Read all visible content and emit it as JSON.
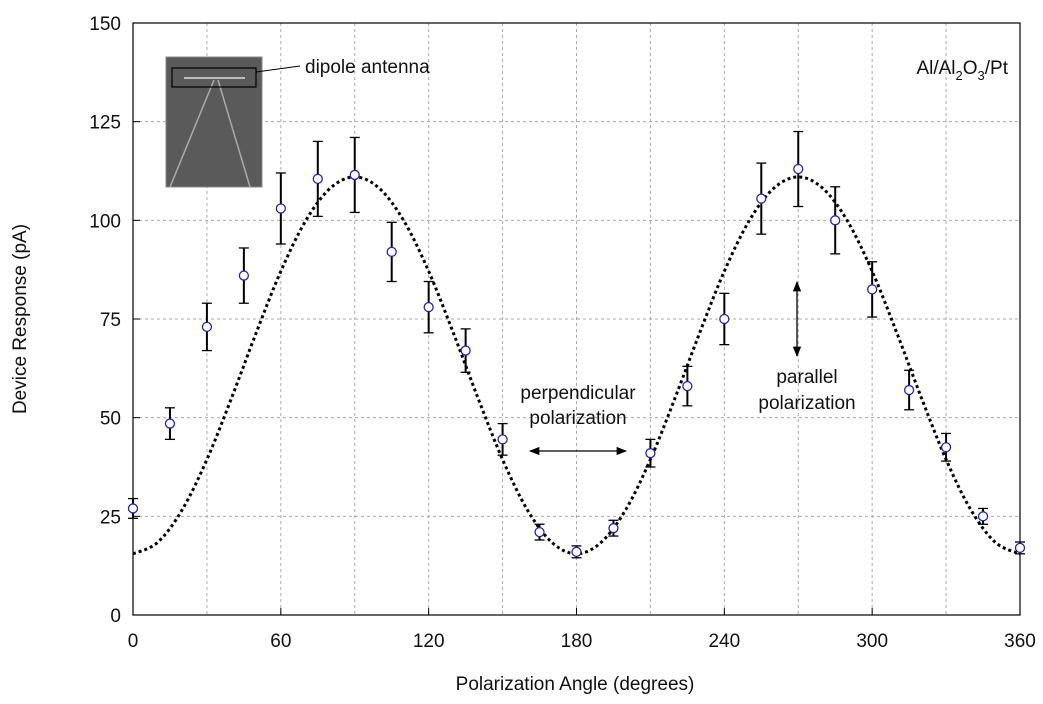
{
  "chart_data": {
    "type": "scatter",
    "x_label": "Polarization Angle (degrees)",
    "y_label": "Device Response (pA)",
    "xlim": [
      0,
      360
    ],
    "ylim": [
      0,
      150
    ],
    "xticks": [
      0,
      60,
      120,
      180,
      240,
      300,
      360
    ],
    "xgrid": [
      30,
      60,
      90,
      120,
      150,
      180,
      210,
      240,
      270,
      300,
      330
    ],
    "yticks": [
      0,
      25,
      50,
      75,
      100,
      125,
      150
    ],
    "grid": true,
    "series": [
      {
        "kind": "points",
        "color": "#2323b8",
        "x": [
          0,
          15,
          30,
          45,
          60,
          75,
          90,
          105,
          120,
          135,
          150,
          165,
          180,
          195,
          210,
          225,
          240,
          255,
          270,
          285,
          300,
          315,
          330,
          345,
          360
        ],
        "values": [
          27,
          48.5,
          73,
          86,
          103,
          110.5,
          111.5,
          92,
          78,
          67,
          44.5,
          21,
          16,
          22,
          41,
          58,
          75,
          105.5,
          113,
          100,
          82.5,
          57,
          42.5,
          25,
          17
        ],
        "errors": [
          2.5,
          4,
          6,
          7,
          9,
          9.5,
          9.5,
          7.5,
          6.5,
          5.5,
          4,
          2,
          1.5,
          2,
          3.5,
          5,
          6.5,
          9,
          9.5,
          8.5,
          7,
          5,
          3.5,
          2,
          1.5
        ]
      },
      {
        "kind": "fit",
        "color": "#000000",
        "x": [
          0,
          10,
          20,
          30,
          40,
          50,
          60,
          70,
          80,
          90,
          100,
          110,
          120,
          130,
          140,
          150,
          160,
          170,
          180,
          190,
          200,
          210,
          220,
          230,
          240,
          250,
          260,
          270,
          280,
          290,
          300,
          310,
          320,
          330,
          340,
          350,
          360
        ],
        "values": [
          15.5,
          18.4,
          26.7,
          39.4,
          55.0,
          71.5,
          87.1,
          99.8,
          108.1,
          111.0,
          108.1,
          99.8,
          87.1,
          71.5,
          55.0,
          39.4,
          26.7,
          18.4,
          15.5,
          18.4,
          26.7,
          39.4,
          55.0,
          71.5,
          87.1,
          99.8,
          108.1,
          111.0,
          108.1,
          99.8,
          87.1,
          71.5,
          55.0,
          39.4,
          26.7,
          18.4,
          15.5
        ]
      }
    ],
    "annotation_antenna": "dipole antenna",
    "annotation_material": [
      {
        "text": "Al/Al"
      },
      {
        "text": "2",
        "sub": true
      },
      {
        "text": "O"
      },
      {
        "text": "3",
        "sub": true
      },
      {
        "text": "/Pt"
      }
    ],
    "annotation_perpendicular": [
      "perpendicular",
      "polarization"
    ],
    "annotation_parallel": [
      "parallel",
      "polarization"
    ]
  }
}
